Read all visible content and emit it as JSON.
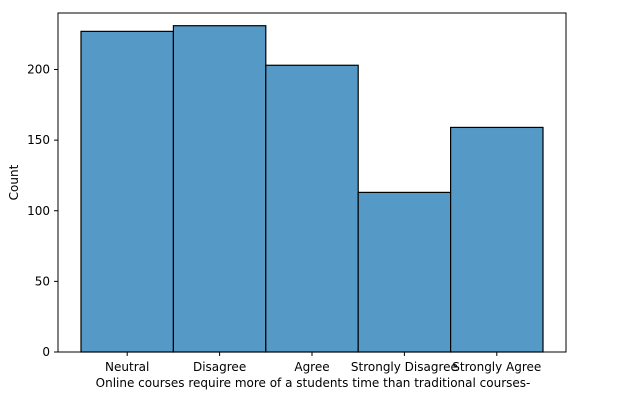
{
  "chart_data": {
    "type": "bar",
    "title": "",
    "xlabel": "Online courses require more of a students time than traditional courses-",
    "ylabel": "Count",
    "categories": [
      "Neutral",
      "Disagree",
      "Agree",
      "Strongly Disagree",
      "Strongly Agree"
    ],
    "values": [
      227,
      231,
      203,
      113,
      159
    ],
    "ylim": [
      0,
      240
    ],
    "yticks": [
      0,
      50,
      100,
      150,
      200
    ],
    "ytick_labels": [
      "0",
      "50",
      "100",
      "150",
      "200"
    ],
    "grid": false,
    "legend": "none",
    "bar_color": "#5599c7",
    "bar_edge_color": "#000000"
  }
}
